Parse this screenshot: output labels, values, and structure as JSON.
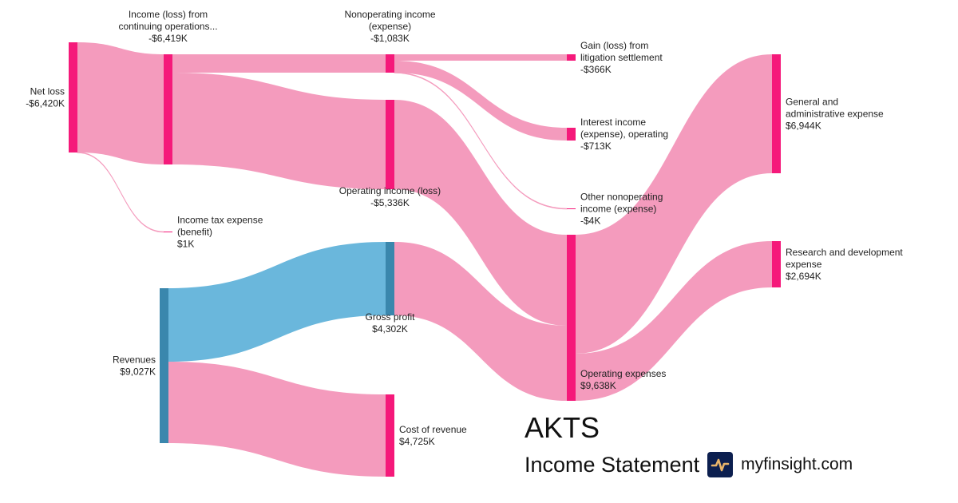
{
  "title": "AKTS",
  "subtitle": "Income Statement",
  "brand": "myfinsight.com",
  "colors": {
    "node": "#f5197a",
    "link": "#f49bbd",
    "revenue_node": "#3a87ad",
    "revenue_link": "#6ab7dc"
  },
  "chart_data": {
    "type": "sankey",
    "nodes": [
      {
        "id": "net_loss",
        "label": [
          "Net loss"
        ],
        "value": "-$6,420K"
      },
      {
        "id": "cont_ops",
        "label": [
          "Income (loss) from",
          "continuing operations..."
        ],
        "value": "-$6,419K"
      },
      {
        "id": "tax",
        "label": [
          "Income tax expense",
          "(benefit)"
        ],
        "value": "$1K"
      },
      {
        "id": "nonop",
        "label": [
          "Nonoperating income",
          "(expense)"
        ],
        "value": "-$1,083K"
      },
      {
        "id": "opinc",
        "label": [
          "Operating income (loss)"
        ],
        "value": "-$5,336K"
      },
      {
        "id": "gain",
        "label": [
          "Gain (loss) from",
          "litigation settlement"
        ],
        "value": "-$366K"
      },
      {
        "id": "interest",
        "label": [
          "Interest income",
          "(expense), operating"
        ],
        "value": "-$713K"
      },
      {
        "id": "othernonop",
        "label": [
          "Other nonoperating",
          "income (expense)"
        ],
        "value": "-$4K"
      },
      {
        "id": "revenues",
        "label": [
          "Revenues"
        ],
        "value": "$9,027K"
      },
      {
        "id": "gross",
        "label": [
          "Gross profit"
        ],
        "value": "$4,302K"
      },
      {
        "id": "cost",
        "label": [
          "Cost of revenue"
        ],
        "value": "$4,725K"
      },
      {
        "id": "opex",
        "label": [
          "Operating expenses"
        ],
        "value": "$9,638K"
      },
      {
        "id": "ga",
        "label": [
          "General and",
          "administrative expense"
        ],
        "value": "$6,944K"
      },
      {
        "id": "rd",
        "label": [
          "Research and development",
          "expense"
        ],
        "value": "$2,694K"
      }
    ],
    "links": [
      {
        "source": "net_loss",
        "target": "cont_ops",
        "value": 6419
      },
      {
        "source": "net_loss",
        "target": "tax",
        "value": 1
      },
      {
        "source": "cont_ops",
        "target": "nonop",
        "value": 1083
      },
      {
        "source": "cont_ops",
        "target": "opinc",
        "value": 5336
      },
      {
        "source": "nonop",
        "target": "gain",
        "value": 366
      },
      {
        "source": "nonop",
        "target": "interest",
        "value": 713
      },
      {
        "source": "nonop",
        "target": "othernonop",
        "value": 4
      },
      {
        "source": "opinc",
        "target": "opex",
        "value": 5336
      },
      {
        "source": "revenues",
        "target": "gross",
        "value": 4302
      },
      {
        "source": "revenues",
        "target": "cost",
        "value": 4725
      },
      {
        "source": "gross",
        "target": "opex",
        "value": 4302
      },
      {
        "source": "opex",
        "target": "ga",
        "value": 6944
      },
      {
        "source": "opex",
        "target": "rd",
        "value": 2694
      }
    ]
  }
}
